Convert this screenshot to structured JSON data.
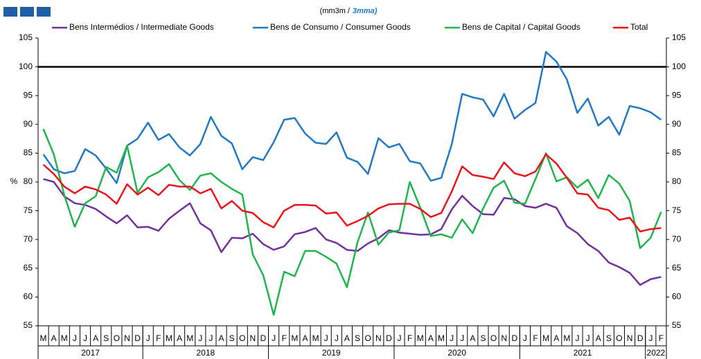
{
  "chart_data": {
    "type": "line",
    "subtitle": "(mm3m /",
    "subtitle_em": "3mma)",
    "y_label": "%",
    "categories": [
      "M",
      "A",
      "M",
      "J",
      "J",
      "A",
      "S",
      "O",
      "N",
      "D",
      "J",
      "F",
      "M",
      "A",
      "M",
      "J",
      "J",
      "A",
      "S",
      "O",
      "N",
      "D",
      "J",
      "F",
      "M",
      "A",
      "M",
      "J",
      "J",
      "A",
      "S",
      "O",
      "N",
      "D",
      "J",
      "F",
      "M",
      "A",
      "M",
      "J",
      "J",
      "A",
      "S",
      "O",
      "N",
      "D",
      "J",
      "F",
      "M",
      "A",
      "M",
      "J",
      "J",
      "A",
      "S",
      "O",
      "N",
      "D",
      "J",
      "F"
    ],
    "x_groups": [
      {
        "label": "2017",
        "size": 10
      },
      {
        "label": "2018",
        "size": 12
      },
      {
        "label": "2019",
        "size": 12
      },
      {
        "label": "2020",
        "size": 12
      },
      {
        "label": "2021",
        "size": 12
      },
      {
        "label": "2022",
        "size": 2
      }
    ],
    "ylim": [
      55,
      105
    ],
    "yticks": [
      55,
      60,
      65,
      70,
      75,
      80,
      85,
      90,
      95,
      100,
      105
    ],
    "reference_line": 100,
    "series": [
      {
        "name": "Bens Intermédios / Intermediate Goods",
        "color": "#7030a0",
        "values": [
          80.5,
          80,
          77.5,
          76.3,
          76,
          75.3,
          74,
          72.8,
          74.2,
          72.1,
          72.2,
          71.5,
          73.6,
          75,
          76.3,
          72.8,
          71.6,
          67.8,
          70.3,
          70.2,
          71,
          69.2,
          68.2,
          68.8,
          70.9,
          71.3,
          72,
          70,
          69.4,
          68.2,
          68,
          69.3,
          70.2,
          71.6,
          71.2,
          71,
          70.8,
          70.9,
          71.8,
          75.2,
          77.6,
          75.8,
          74.4,
          74.3,
          77.2,
          77,
          75.8,
          75.5,
          76.2,
          75.5,
          72.3,
          71.1,
          69.2,
          68,
          66,
          65.2,
          64.2,
          62.1,
          63.1,
          63.5
        ]
      },
      {
        "name": "Bens de Consumo / Consumer Goods",
        "color": "#1f78c8",
        "values": [
          84.8,
          82.2,
          81.5,
          81.9,
          85.7,
          84.6,
          82.3,
          79.8,
          86.3,
          87.5,
          90.3,
          87.3,
          88.3,
          86,
          84.6,
          86.6,
          91.3,
          88,
          86.7,
          82.2,
          84.3,
          83.8,
          86.9,
          90.8,
          91.1,
          88.4,
          86.8,
          86.6,
          88.6,
          84.2,
          83.5,
          81.4,
          87.6,
          86,
          86.6,
          83.6,
          83.2,
          80.2,
          80.7,
          86.5,
          95.3,
          94.7,
          94.3,
          91.4,
          95.3,
          91,
          92.5,
          93.7,
          102.6,
          100.9,
          97.8,
          92,
          94.5,
          89.8,
          91.3,
          88.2,
          93.2,
          92.8,
          92.1,
          90.8
        ]
      },
      {
        "name": "Bens de Capital / Capital Goods",
        "color": "#1eb64a",
        "values": [
          89.2,
          84.8,
          77.7,
          72.2,
          76.3,
          77.5,
          82.6,
          81.6,
          86.3,
          78.1,
          80.8,
          81.7,
          83.1,
          80.3,
          78.6,
          81.1,
          81.5,
          80,
          78.8,
          77.8,
          67.4,
          63.8,
          56.9,
          64.4,
          63.6,
          68,
          68,
          67,
          65.8,
          61.7,
          69.5,
          74.7,
          69.1,
          71.2,
          71.6,
          80,
          75.5,
          70.6,
          70.9,
          70.3,
          73.5,
          71.1,
          75.4,
          79,
          80.2,
          76.4,
          76.2,
          80.5,
          85,
          80.1,
          80.8,
          79,
          80.4,
          77.2,
          81.2,
          79.7,
          76.7,
          68.5,
          70.3,
          74.8
        ]
      },
      {
        "name": "Total",
        "color": "#e8151b",
        "values": [
          83,
          81.4,
          79.2,
          78,
          79.2,
          78.7,
          77.8,
          76.2,
          79.6,
          77.8,
          79,
          77.7,
          79.5,
          79.2,
          79.2,
          78,
          78.8,
          75.4,
          76.7,
          75,
          74.6,
          73,
          72.1,
          75,
          76,
          76,
          75.9,
          74.5,
          74.7,
          72.4,
          73.2,
          74.1,
          75.4,
          76.1,
          76.2,
          76.2,
          75.3,
          73.9,
          74.6,
          78.3,
          82.7,
          81.2,
          80.9,
          80.5,
          83.4,
          81.5,
          81,
          81.8,
          84.8,
          83.2,
          80.7,
          78,
          77.8,
          75.5,
          75.1,
          73.4,
          73.8,
          71.4,
          71.8,
          72
        ]
      }
    ]
  }
}
